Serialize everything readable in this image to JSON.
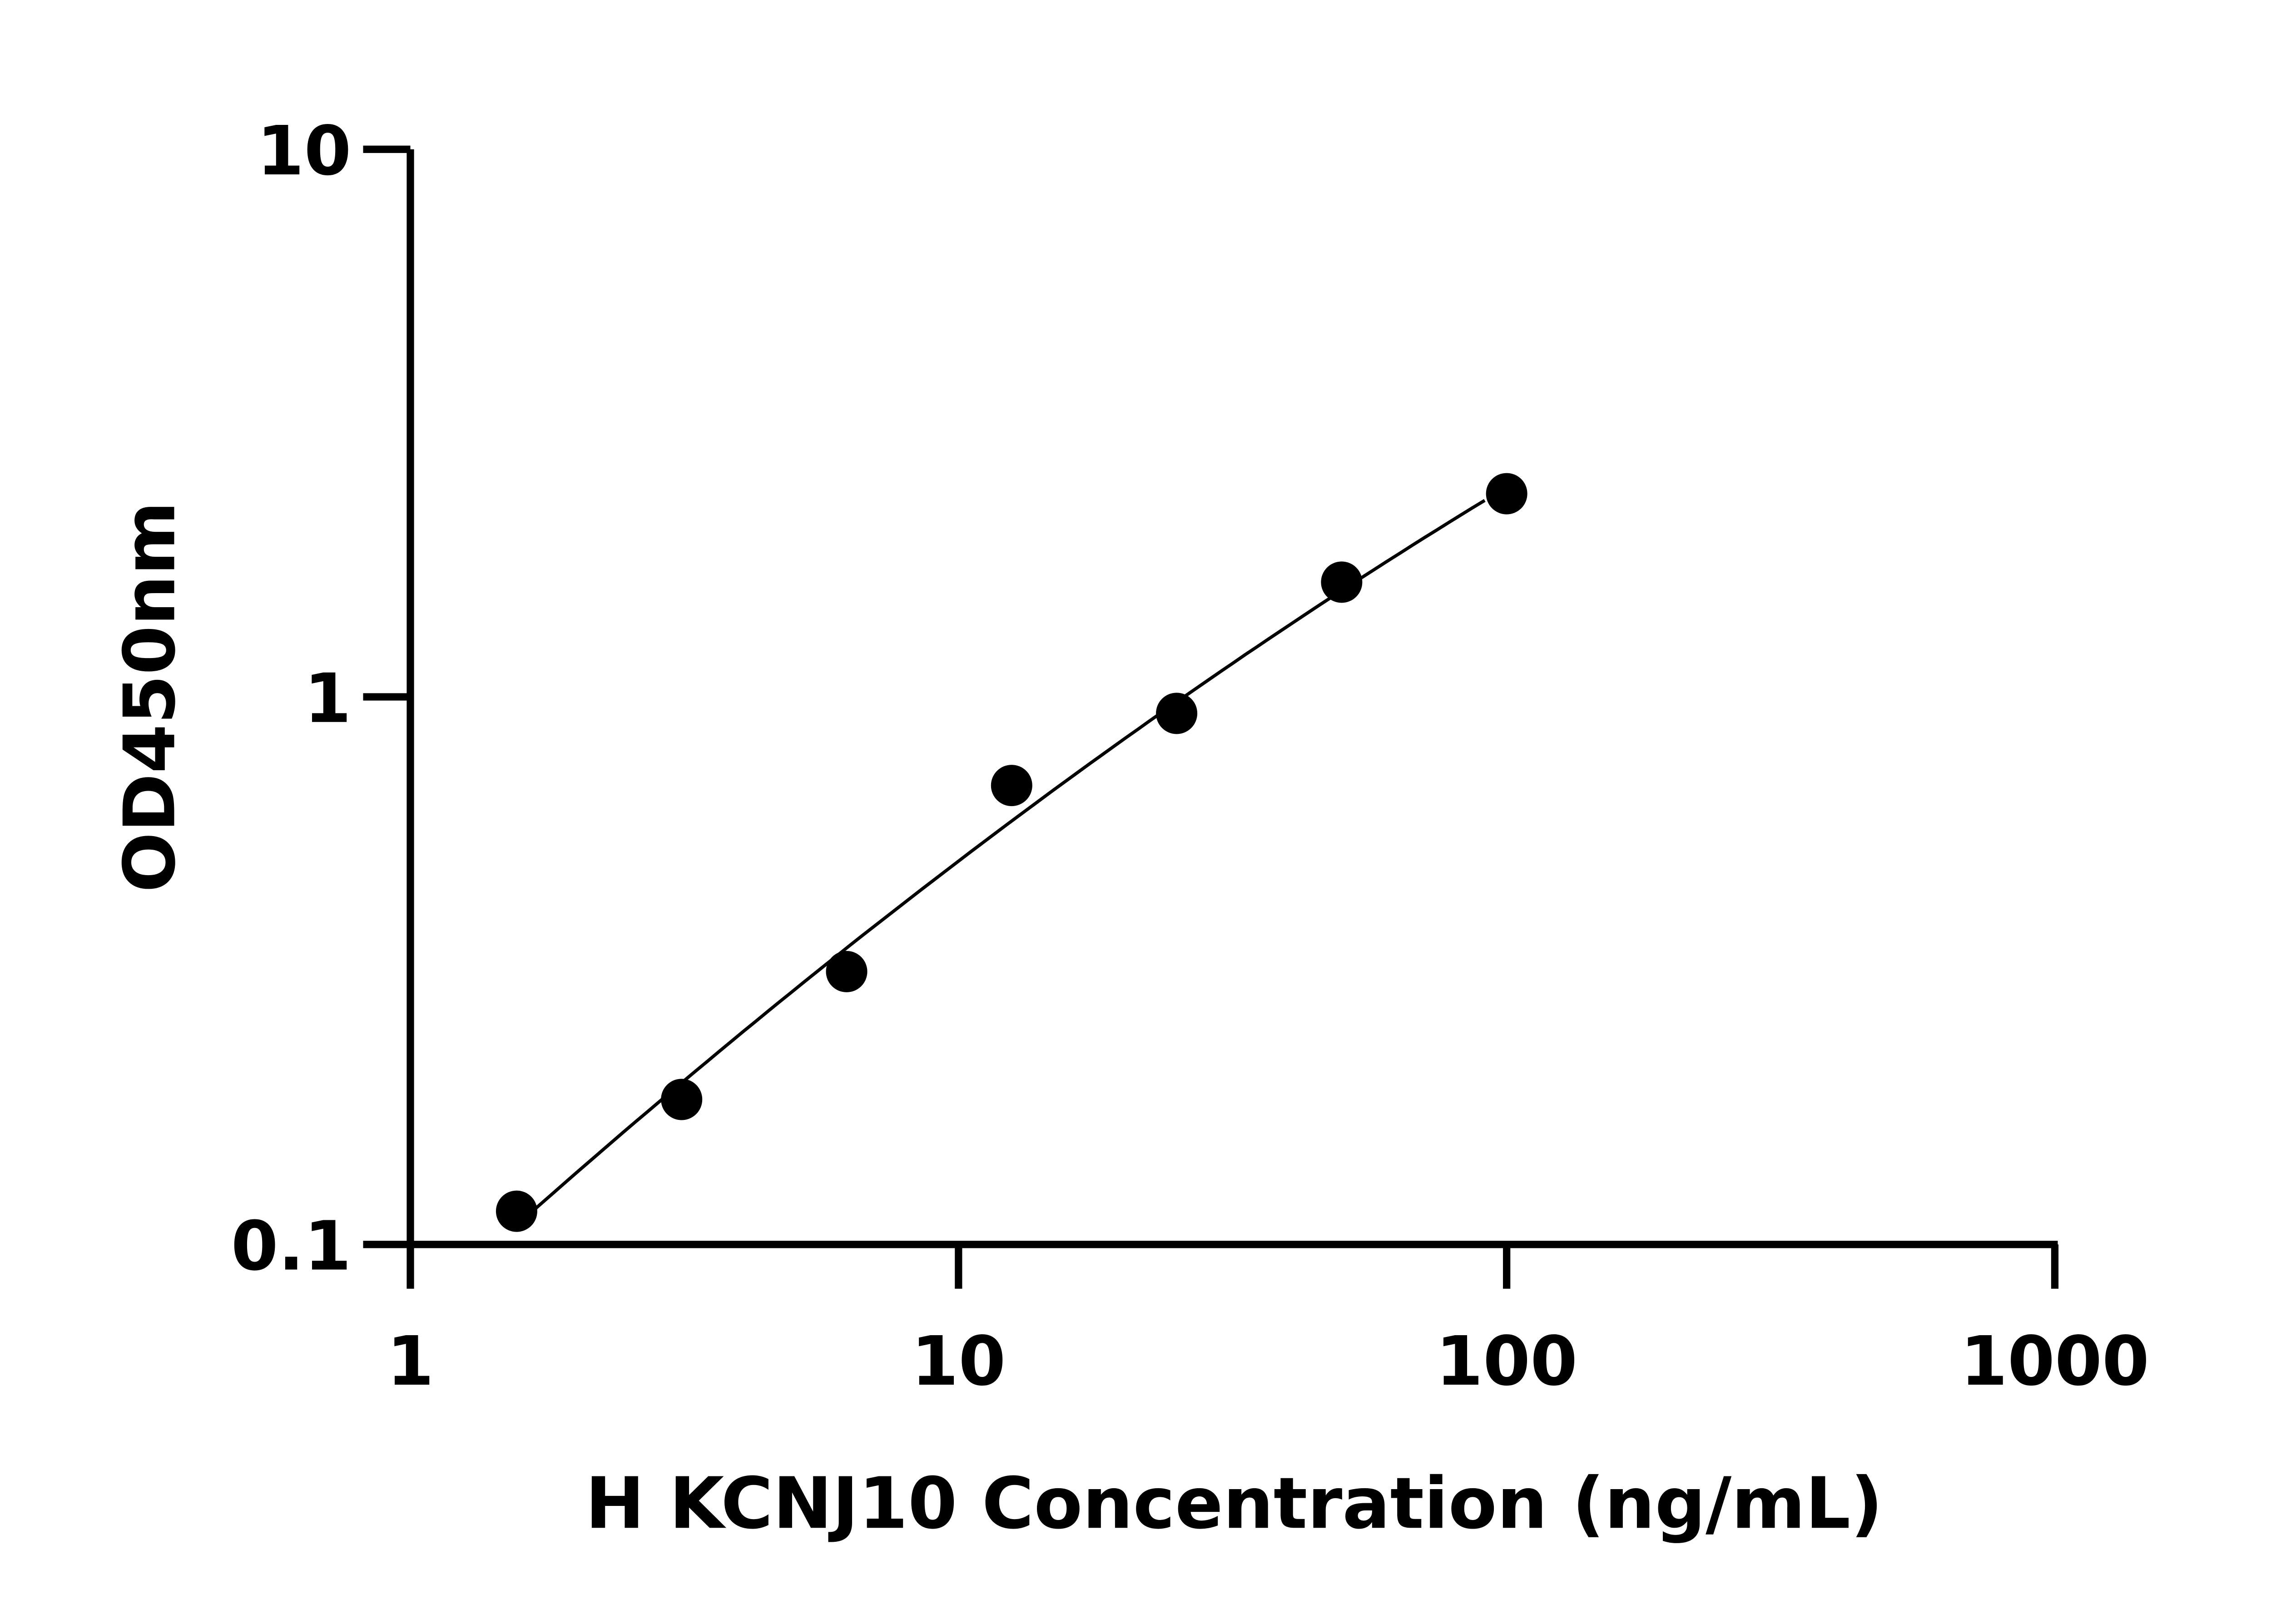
{
  "chart_data": {
    "type": "scatter",
    "title": "",
    "xlabel": "H KCNJ10 Concentration (ng/mL)",
    "ylabel": "OD450nm",
    "xscale": "log",
    "yscale": "log",
    "xlim": [
      1,
      1000
    ],
    "ylim": [
      0.1,
      10
    ],
    "xticks": [
      "1",
      "10",
      "100",
      "1000"
    ],
    "yticks": [
      "0.1",
      "1",
      "10"
    ],
    "grid": false,
    "legend": "none",
    "has_fit_curve": true,
    "point_color": "#000000",
    "x": [
      1.5625,
      3.125,
      6.25,
      12.5,
      25,
      50,
      100
    ],
    "y": [
      0.115,
      0.184,
      0.315,
      0.689,
      0.933,
      1.62,
      2.35
    ]
  }
}
